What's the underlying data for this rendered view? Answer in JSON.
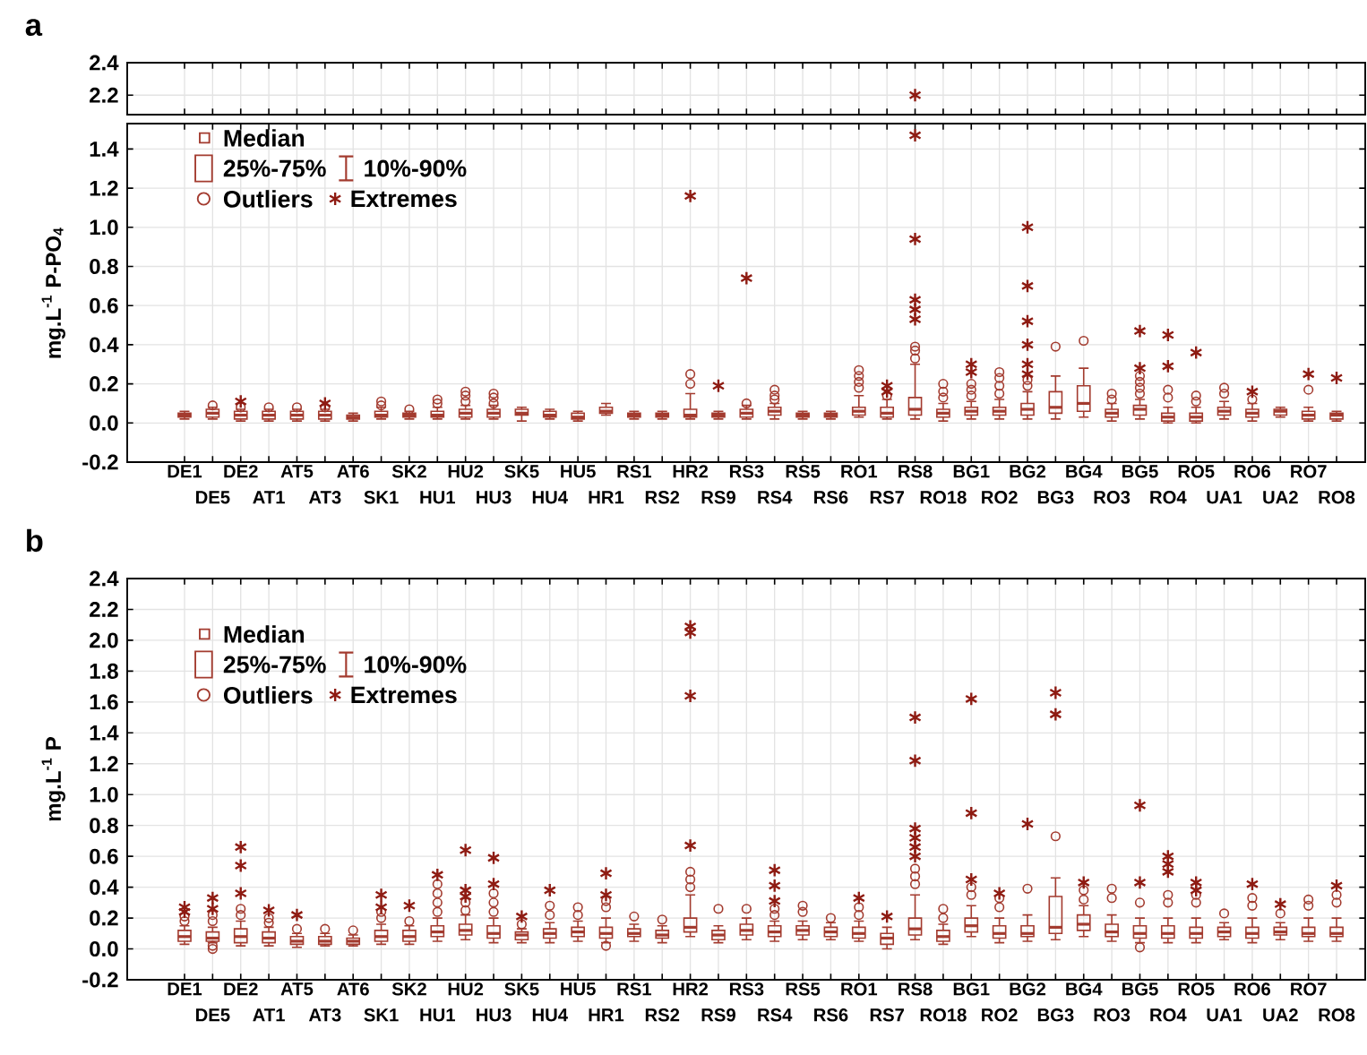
{
  "chart_data": [
    {
      "type": "scatter",
      "title": "a",
      "categories": [
        "DE1",
        "DE5",
        "DE2",
        "AT1",
        "AT5",
        "AT3",
        "AT6",
        "SK1",
        "SK2",
        "HU1",
        "HU2",
        "HU3",
        "SK5",
        "HU4",
        "HU5",
        "HR1",
        "RS1",
        "RS2",
        "HR2",
        "RS9",
        "RS3",
        "RS4",
        "RS5",
        "RS6",
        "RO1",
        "RS7",
        "RS8",
        "RO18",
        "BG1",
        "RO2",
        "BG2",
        "BG3",
        "BG4",
        "RO3",
        "BG5",
        "RO4",
        "RO5",
        "UA1",
        "RO6",
        "UA2",
        "RO7",
        "RO8"
      ],
      "ylim": [
        2.08,
        2.4
      ],
      "yticks": [
        {
          "value": 2.2,
          "label": "2.2"
        },
        {
          "value": 2.4,
          "label": "2.4"
        }
      ],
      "grid": true,
      "tick_labels": "y",
      "series": [
        {
          "color": "#8e1b12",
          "marker": "cross",
          "x": [
            "RS8"
          ],
          "values": [
            2.2
          ]
        }
      ]
    },
    {
      "type": "box",
      "ylabel": "mg.L$^{-1}$ P-PO$_{4}$",
      "categories": [
        "DE1",
        "DE5",
        "DE2",
        "AT1",
        "AT5",
        "AT3",
        "AT6",
        "SK1",
        "SK2",
        "HU1",
        "HU2",
        "HU3",
        "SK5",
        "HU4",
        "HU5",
        "HR1",
        "RS1",
        "RS2",
        "HR2",
        "RS9",
        "RS3",
        "RS4",
        "RS5",
        "RS6",
        "RO1",
        "RS7",
        "RS8",
        "RO18",
        "BG1",
        "RO2",
        "BG2",
        "BG3",
        "BG4",
        "RO3",
        "BG5",
        "RO4",
        "RO5",
        "UA1",
        "RO6",
        "UA2",
        "RO7",
        "RO8"
      ],
      "ylim": [
        -0.2,
        1.53
      ],
      "yticks": [
        {
          "value": -0.2,
          "label": "-0.2"
        },
        {
          "value": 0.0,
          "label": "0.0"
        },
        {
          "value": 0.2,
          "label": "0.2"
        },
        {
          "value": 0.4,
          "label": "0.4"
        },
        {
          "value": 0.6,
          "label": "0.6"
        },
        {
          "value": 0.8,
          "label": "0.8"
        },
        {
          "value": 1.0,
          "label": "1.0"
        },
        {
          "value": 1.2,
          "label": "1.2"
        },
        {
          "value": 1.4,
          "label": "1.4"
        }
      ],
      "grid": true,
      "legend": "top left",
      "annotations": [
        "Median",
        "25%-75%",
        "10%-90%",
        "Outliers"
      ],
      "series": [
        {
          "type": "box",
          "color": "#a33b2f",
          "boxes": [
            {
              "low": 0.02,
              "q1": 0.03,
              "median": 0.04,
              "q3": 0.05,
              "high": 0.06
            },
            {
              "low": 0.02,
              "q1": 0.03,
              "median": 0.05,
              "q3": 0.07,
              "high": 0.08,
              "outliers": [
                0.09
              ]
            },
            {
              "low": 0.01,
              "q1": 0.02,
              "median": 0.04,
              "q3": 0.06,
              "high": 0.07,
              "outliers": [
                0.08
              ]
            },
            {
              "low": 0.01,
              "q1": 0.02,
              "median": 0.04,
              "q3": 0.06,
              "high": 0.07,
              "outliers": [
                0.08
              ]
            },
            {
              "low": 0.01,
              "q1": 0.02,
              "median": 0.04,
              "q3": 0.06,
              "high": 0.07,
              "outliers": [
                0.08
              ]
            },
            {
              "low": 0.01,
              "q1": 0.02,
              "median": 0.04,
              "q3": 0.06,
              "high": 0.07,
              "outliers": [
                0.08
              ]
            },
            {
              "low": 0.01,
              "q1": 0.02,
              "median": 0.03,
              "q3": 0.04,
              "high": 0.05
            },
            {
              "low": 0.02,
              "q1": 0.03,
              "median": 0.04,
              "q3": 0.06,
              "high": 0.08,
              "outliers": [
                0.09,
                0.11
              ]
            },
            {
              "low": 0.02,
              "q1": 0.03,
              "median": 0.04,
              "q3": 0.05,
              "high": 0.06,
              "outliers": [
                0.07
              ]
            },
            {
              "low": 0.02,
              "q1": 0.03,
              "median": 0.04,
              "q3": 0.06,
              "high": 0.08,
              "outliers": [
                0.1,
                0.12
              ]
            },
            {
              "low": 0.02,
              "q1": 0.03,
              "median": 0.05,
              "q3": 0.07,
              "high": 0.09,
              "outliers": [
                0.11,
                0.14,
                0.16
              ]
            },
            {
              "low": 0.02,
              "q1": 0.03,
              "median": 0.05,
              "q3": 0.07,
              "high": 0.09,
              "outliers": [
                0.1,
                0.13,
                0.15
              ]
            },
            {
              "low": 0.01,
              "q1": 0.04,
              "median": 0.05,
              "q3": 0.07,
              "high": 0.08
            },
            {
              "low": 0.02,
              "q1": 0.03,
              "median": 0.04,
              "q3": 0.06,
              "high": 0.07
            },
            {
              "low": 0.01,
              "q1": 0.02,
              "median": 0.03,
              "q3": 0.05,
              "high": 0.06
            },
            {
              "low": 0.04,
              "q1": 0.05,
              "median": 0.06,
              "q3": 0.08,
              "high": 0.1
            },
            {
              "low": 0.02,
              "q1": 0.03,
              "median": 0.04,
              "q3": 0.05,
              "high": 0.06
            },
            {
              "low": 0.02,
              "q1": 0.03,
              "median": 0.04,
              "q3": 0.05,
              "high": 0.06
            },
            {
              "low": 0.02,
              "q1": 0.03,
              "median": 0.04,
              "q3": 0.07,
              "high": 0.15,
              "outliers": [
                0.2,
                0.25
              ]
            },
            {
              "low": 0.02,
              "q1": 0.03,
              "median": 0.04,
              "q3": 0.05,
              "high": 0.06
            },
            {
              "low": 0.02,
              "q1": 0.03,
              "median": 0.05,
              "q3": 0.07,
              "high": 0.09,
              "outliers": [
                0.1
              ]
            },
            {
              "low": 0.02,
              "q1": 0.04,
              "median": 0.06,
              "q3": 0.08,
              "high": 0.1,
              "outliers": [
                0.12,
                0.14,
                0.17
              ]
            },
            {
              "low": 0.02,
              "q1": 0.03,
              "median": 0.04,
              "q3": 0.05,
              "high": 0.06
            },
            {
              "low": 0.02,
              "q1": 0.03,
              "median": 0.04,
              "q3": 0.05,
              "high": 0.06
            },
            {
              "low": 0.03,
              "q1": 0.04,
              "median": 0.06,
              "q3": 0.08,
              "high": 0.14,
              "outliers": [
                0.18,
                0.21,
                0.24,
                0.27
              ]
            },
            {
              "low": 0.02,
              "q1": 0.03,
              "median": 0.05,
              "q3": 0.08,
              "high": 0.12,
              "outliers": [
                0.14
              ]
            },
            {
              "low": 0.02,
              "q1": 0.04,
              "median": 0.07,
              "q3": 0.13,
              "high": 0.3,
              "outliers": [
                0.33,
                0.37,
                0.39
              ]
            },
            {
              "low": 0.01,
              "q1": 0.03,
              "median": 0.05,
              "q3": 0.07,
              "high": 0.1,
              "outliers": [
                0.13,
                0.16,
                0.2
              ]
            },
            {
              "low": 0.02,
              "q1": 0.04,
              "median": 0.06,
              "q3": 0.08,
              "high": 0.11,
              "outliers": [
                0.14,
                0.17,
                0.2
              ]
            },
            {
              "low": 0.02,
              "q1": 0.04,
              "median": 0.06,
              "q3": 0.08,
              "high": 0.12,
              "outliers": [
                0.15,
                0.19,
                0.23,
                0.26
              ]
            },
            {
              "low": 0.02,
              "q1": 0.04,
              "median": 0.07,
              "q3": 0.1,
              "high": 0.16,
              "outliers": [
                0.19,
                0.22
              ]
            },
            {
              "low": 0.02,
              "q1": 0.05,
              "median": 0.08,
              "q3": 0.16,
              "high": 0.24,
              "outliers": [
                0.39
              ]
            },
            {
              "low": 0.03,
              "q1": 0.06,
              "median": 0.1,
              "q3": 0.19,
              "high": 0.28,
              "outliers": [
                0.42
              ]
            },
            {
              "low": 0.01,
              "q1": 0.03,
              "median": 0.05,
              "q3": 0.07,
              "high": 0.1,
              "outliers": [
                0.12,
                0.15
              ]
            },
            {
              "low": 0.02,
              "q1": 0.04,
              "median": 0.07,
              "q3": 0.09,
              "high": 0.12,
              "outliers": [
                0.15,
                0.18,
                0.21,
                0.24
              ]
            },
            {
              "low": 0.0,
              "q1": 0.01,
              "median": 0.03,
              "q3": 0.05,
              "high": 0.08,
              "outliers": [
                0.13,
                0.17
              ]
            },
            {
              "low": 0.0,
              "q1": 0.01,
              "median": 0.03,
              "q3": 0.05,
              "high": 0.08,
              "outliers": [
                0.11,
                0.14
              ]
            },
            {
              "low": 0.02,
              "q1": 0.04,
              "median": 0.06,
              "q3": 0.08,
              "high": 0.11,
              "outliers": [
                0.15,
                0.18
              ]
            },
            {
              "low": 0.01,
              "q1": 0.03,
              "median": 0.05,
              "q3": 0.07,
              "high": 0.1,
              "outliers": [
                0.12
              ]
            },
            {
              "low": 0.03,
              "q1": 0.04,
              "median": 0.06,
              "q3": 0.07,
              "high": 0.08
            },
            {
              "low": 0.01,
              "q1": 0.02,
              "median": 0.04,
              "q3": 0.06,
              "high": 0.08,
              "outliers": [
                0.17
              ]
            },
            {
              "low": 0.01,
              "q1": 0.02,
              "median": 0.04,
              "q3": 0.05,
              "high": 0.06
            }
          ]
        },
        {
          "type": "scatter",
          "name": "Extremes",
          "color": "#8e1b12",
          "marker": "cross",
          "x": [
            "DE2",
            "AT3",
            "HR2",
            "RS9",
            "RS3",
            "RS7",
            "RS7",
            "RS8",
            "RS8",
            "RS8",
            "RS8",
            "RS8",
            "BG1",
            "BG1",
            "BG2",
            "BG2",
            "BG2",
            "BG2",
            "BG2",
            "BG2",
            "BG5",
            "BG5",
            "RO4",
            "RO4",
            "RO5",
            "RO6",
            "RO7",
            "RO8"
          ],
          "values": [
            0.11,
            0.1,
            1.16,
            0.19,
            0.74,
            0.16,
            0.19,
            0.53,
            0.58,
            0.63,
            0.94,
            1.47,
            0.26,
            0.3,
            0.25,
            0.3,
            0.4,
            0.52,
            0.7,
            1.0,
            0.28,
            0.47,
            0.29,
            0.45,
            0.36,
            0.16,
            0.25,
            0.23
          ]
        }
      ]
    },
    {
      "type": "box",
      "title": "b",
      "ylabel": "mg.L$^{-1}$ P",
      "categories": [
        "DE1",
        "DE5",
        "DE2",
        "AT1",
        "AT5",
        "AT3",
        "AT6",
        "SK1",
        "SK2",
        "HU1",
        "HU2",
        "HU3",
        "SK5",
        "HU4",
        "HU5",
        "HR1",
        "RS1",
        "RS2",
        "HR2",
        "RS9",
        "RS3",
        "RS4",
        "RS5",
        "RS6",
        "RO1",
        "RS7",
        "RS8",
        "RO18",
        "BG1",
        "RO2",
        "BG2",
        "BG3",
        "BG4",
        "RO3",
        "BG5",
        "RO4",
        "RO5",
        "UA1",
        "RO6",
        "UA2",
        "RO7",
        "RO8"
      ],
      "ylim": [
        -0.2,
        2.4
      ],
      "yticks": [
        {
          "value": -0.2,
          "label": "-0.2"
        },
        {
          "value": 0.0,
          "label": "0.0"
        },
        {
          "value": 0.2,
          "label": "0.2"
        },
        {
          "value": 0.4,
          "label": "0.4"
        },
        {
          "value": 0.6,
          "label": "0.6"
        },
        {
          "value": 0.8,
          "label": "0.8"
        },
        {
          "value": 1.0,
          "label": "1.0"
        },
        {
          "value": 1.2,
          "label": "1.2"
        },
        {
          "value": 1.4,
          "label": "1.4"
        },
        {
          "value": 1.6,
          "label": "1.6"
        },
        {
          "value": 1.8,
          "label": "1.8"
        },
        {
          "value": 2.0,
          "label": "2.0"
        },
        {
          "value": 2.2,
          "label": "2.2"
        },
        {
          "value": 2.4,
          "label": "2.4"
        }
      ],
      "grid": true,
      "legend": "top left",
      "annotations": [
        "Median",
        "25%-75%",
        "10%-90%",
        "Outliers"
      ],
      "series": [
        {
          "type": "box",
          "color": "#a33b2f",
          "boxes": [
            {
              "low": 0.03,
              "q1": 0.05,
              "median": 0.08,
              "q3": 0.12,
              "high": 0.15,
              "outliers": [
                0.18,
                0.21
              ]
            },
            {
              "low": 0.04,
              "q1": 0.05,
              "median": 0.07,
              "q3": 0.11,
              "high": 0.14,
              "outliers": [
                0.0,
                0.02,
                0.18,
                0.22
              ]
            },
            {
              "low": 0.02,
              "q1": 0.04,
              "median": 0.08,
              "q3": 0.13,
              "high": 0.18,
              "outliers": [
                0.22,
                0.26
              ]
            },
            {
              "low": 0.02,
              "q1": 0.04,
              "median": 0.07,
              "q3": 0.11,
              "high": 0.14,
              "outliers": [
                0.17,
                0.2
              ]
            },
            {
              "low": 0.01,
              "q1": 0.03,
              "median": 0.05,
              "q3": 0.08,
              "high": 0.1,
              "outliers": [
                0.13
              ]
            },
            {
              "low": 0.02,
              "q1": 0.03,
              "median": 0.05,
              "q3": 0.08,
              "high": 0.1,
              "outliers": [
                0.13
              ]
            },
            {
              "low": 0.02,
              "q1": 0.03,
              "median": 0.05,
              "q3": 0.07,
              "high": 0.09,
              "outliers": [
                0.12
              ]
            },
            {
              "low": 0.03,
              "q1": 0.05,
              "median": 0.08,
              "q3": 0.12,
              "high": 0.16,
              "outliers": [
                0.2,
                0.24
              ]
            },
            {
              "low": 0.03,
              "q1": 0.05,
              "median": 0.08,
              "q3": 0.12,
              "high": 0.15,
              "outliers": [
                0.18
              ]
            },
            {
              "low": 0.05,
              "q1": 0.08,
              "median": 0.11,
              "q3": 0.15,
              "high": 0.2,
              "outliers": [
                0.24,
                0.3,
                0.36,
                0.42
              ]
            },
            {
              "low": 0.06,
              "q1": 0.09,
              "median": 0.12,
              "q3": 0.16,
              "high": 0.22,
              "outliers": [
                0.25,
                0.3
              ]
            },
            {
              "low": 0.04,
              "q1": 0.07,
              "median": 0.1,
              "q3": 0.15,
              "high": 0.2,
              "outliers": [
                0.24,
                0.3,
                0.36
              ]
            },
            {
              "low": 0.04,
              "q1": 0.06,
              "median": 0.09,
              "q3": 0.11,
              "high": 0.13,
              "outliers": [
                0.16
              ]
            },
            {
              "low": 0.04,
              "q1": 0.07,
              "median": 0.1,
              "q3": 0.13,
              "high": 0.17,
              "outliers": [
                0.22,
                0.28
              ]
            },
            {
              "low": 0.05,
              "q1": 0.08,
              "median": 0.11,
              "q3": 0.14,
              "high": 0.18,
              "outliers": [
                0.22,
                0.27
              ]
            },
            {
              "low": 0.04,
              "q1": 0.07,
              "median": 0.1,
              "q3": 0.14,
              "high": 0.2,
              "outliers": [
                0.02,
                0.27,
                0.31
              ]
            },
            {
              "low": 0.05,
              "q1": 0.08,
              "median": 0.1,
              "q3": 0.13,
              "high": 0.16,
              "outliers": [
                0.21
              ]
            },
            {
              "low": 0.04,
              "q1": 0.07,
              "median": 0.09,
              "q3": 0.12,
              "high": 0.15,
              "outliers": [
                0.19
              ]
            },
            {
              "low": 0.08,
              "q1": 0.11,
              "median": 0.14,
              "q3": 0.2,
              "high": 0.35,
              "outliers": [
                0.4,
                0.45,
                0.5
              ]
            },
            {
              "low": 0.04,
              "q1": 0.06,
              "median": 0.09,
              "q3": 0.12,
              "high": 0.15,
              "outliers": [
                0.26
              ]
            },
            {
              "low": 0.06,
              "q1": 0.09,
              "median": 0.12,
              "q3": 0.16,
              "high": 0.2,
              "outliers": [
                0.26
              ]
            },
            {
              "low": 0.05,
              "q1": 0.08,
              "median": 0.11,
              "q3": 0.15,
              "high": 0.18,
              "outliers": [
                0.22,
                0.26
              ]
            },
            {
              "low": 0.06,
              "q1": 0.09,
              "median": 0.12,
              "q3": 0.15,
              "high": 0.18,
              "outliers": [
                0.24,
                0.28
              ]
            },
            {
              "low": 0.06,
              "q1": 0.08,
              "median": 0.11,
              "q3": 0.14,
              "high": 0.17,
              "outliers": [
                0.2
              ]
            },
            {
              "low": 0.05,
              "q1": 0.07,
              "median": 0.1,
              "q3": 0.14,
              "high": 0.18,
              "outliers": [
                0.22,
                0.27
              ]
            },
            {
              "low": 0.0,
              "q1": 0.03,
              "median": 0.07,
              "q3": 0.1,
              "high": 0.14
            },
            {
              "low": 0.06,
              "q1": 0.09,
              "median": 0.13,
              "q3": 0.2,
              "high": 0.35,
              "outliers": [
                0.42,
                0.47,
                0.52
              ]
            },
            {
              "low": 0.03,
              "q1": 0.05,
              "median": 0.08,
              "q3": 0.12,
              "high": 0.16,
              "outliers": [
                0.2,
                0.26
              ]
            },
            {
              "low": 0.08,
              "q1": 0.11,
              "median": 0.15,
              "q3": 0.2,
              "high": 0.28,
              "outliers": [
                0.35,
                0.4
              ]
            },
            {
              "low": 0.04,
              "q1": 0.07,
              "median": 0.1,
              "q3": 0.15,
              "high": 0.2,
              "outliers": [
                0.27,
                0.33
              ]
            },
            {
              "low": 0.05,
              "q1": 0.08,
              "median": 0.1,
              "q3": 0.15,
              "high": 0.22,
              "outliers": [
                0.39
              ]
            },
            {
              "low": 0.06,
              "q1": 0.1,
              "median": 0.14,
              "q3": 0.34,
              "high": 0.46,
              "outliers": [
                0.73
              ]
            },
            {
              "low": 0.08,
              "q1": 0.12,
              "median": 0.16,
              "q3": 0.22,
              "high": 0.28,
              "outliers": [
                0.32,
                0.38
              ]
            },
            {
              "low": 0.05,
              "q1": 0.08,
              "median": 0.11,
              "q3": 0.16,
              "high": 0.22,
              "outliers": [
                0.33,
                0.39
              ]
            },
            {
              "low": 0.04,
              "q1": 0.07,
              "median": 0.1,
              "q3": 0.15,
              "high": 0.2,
              "outliers": [
                0.01,
                0.3
              ]
            },
            {
              "low": 0.04,
              "q1": 0.07,
              "median": 0.1,
              "q3": 0.15,
              "high": 0.2,
              "outliers": [
                0.3,
                0.35
              ]
            },
            {
              "low": 0.04,
              "q1": 0.07,
              "median": 0.1,
              "q3": 0.14,
              "high": 0.2,
              "outliers": [
                0.3,
                0.35
              ]
            },
            {
              "low": 0.06,
              "q1": 0.08,
              "median": 0.11,
              "q3": 0.14,
              "high": 0.17,
              "outliers": [
                0.23
              ]
            },
            {
              "low": 0.04,
              "q1": 0.07,
              "median": 0.1,
              "q3": 0.14,
              "high": 0.2,
              "outliers": [
                0.28,
                0.33
              ]
            },
            {
              "low": 0.06,
              "q1": 0.09,
              "median": 0.11,
              "q3": 0.14,
              "high": 0.17,
              "outliers": [
                0.23
              ]
            },
            {
              "low": 0.05,
              "q1": 0.08,
              "median": 0.1,
              "q3": 0.14,
              "high": 0.2,
              "outliers": [
                0.28,
                0.32
              ]
            },
            {
              "low": 0.05,
              "q1": 0.08,
              "median": 0.1,
              "q3": 0.14,
              "high": 0.2,
              "outliers": [
                0.3,
                0.35
              ]
            }
          ]
        },
        {
          "type": "scatter",
          "name": "Extremes",
          "color": "#8e1b12",
          "marker": "cross",
          "x": [
            "DE1",
            "DE1",
            "DE5",
            "DE5",
            "DE2",
            "DE2",
            "DE2",
            "AT1",
            "AT5",
            "SK1",
            "SK1",
            "SK2",
            "HU1",
            "HU2",
            "HU2",
            "HU2",
            "HU3",
            "HU3",
            "SK5",
            "HU4",
            "HR1",
            "HR1",
            "HR2",
            "HR2",
            "HR2",
            "HR2",
            "RS4",
            "RS4",
            "RS4",
            "RO1",
            "RS7",
            "RS8",
            "RS8",
            "RS8",
            "RS8",
            "RS8",
            "RS8",
            "BG1",
            "BG1",
            "BG1",
            "RO2",
            "BG2",
            "BG3",
            "BG3",
            "BG4",
            "BG5",
            "BG5",
            "RO4",
            "RO4",
            "RO4",
            "RO5",
            "RO5",
            "RO6",
            "UA2",
            "RO8"
          ],
          "values": [
            0.24,
            0.27,
            0.26,
            0.33,
            0.36,
            0.54,
            0.66,
            0.25,
            0.22,
            0.27,
            0.35,
            0.28,
            0.48,
            0.34,
            0.38,
            0.64,
            0.42,
            0.59,
            0.21,
            0.38,
            0.35,
            0.49,
            0.67,
            1.64,
            2.05,
            2.09,
            0.31,
            0.41,
            0.51,
            0.33,
            0.21,
            0.6,
            0.66,
            0.72,
            0.78,
            1.22,
            1.5,
            0.45,
            0.88,
            1.62,
            0.36,
            0.81,
            1.52,
            1.66,
            0.43,
            0.43,
            0.93,
            0.5,
            0.55,
            0.6,
            0.38,
            0.43,
            0.42,
            0.29,
            0.41
          ]
        }
      ]
    }
  ]
}
